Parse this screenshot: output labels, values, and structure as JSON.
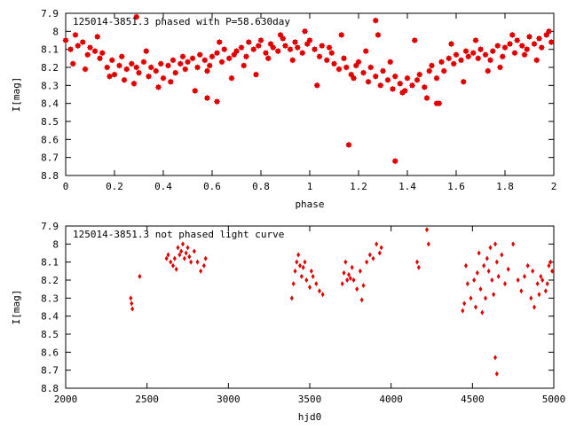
{
  "chart_data": [
    {
      "type": "scatter",
      "title": "125014-3851.3 phased with P=58.630day",
      "xlabel": "phase",
      "ylabel": "I[mag]",
      "xlim": [
        0,
        2
      ],
      "ylim": [
        7.9,
        8.8
      ],
      "y_inverted": true,
      "marker": "star",
      "color": "#e00000",
      "xticks": [
        "0",
        "0.2",
        "0.4",
        "0.6",
        "0.8",
        "1",
        "1.2",
        "1.4",
        "1.6",
        "1.8",
        "2"
      ],
      "yticks": [
        "7.9",
        "8",
        "8.1",
        "8.2",
        "8.3",
        "8.4",
        "8.5",
        "8.6",
        "8.7",
        "8.8"
      ],
      "xtick_values": [
        0,
        0.2,
        0.4,
        0.6,
        0.8,
        1,
        1.2,
        1.4,
        1.6,
        1.8,
        2
      ],
      "ytick_values": [
        7.9,
        8.0,
        8.1,
        8.2,
        8.3,
        8.4,
        8.5,
        8.6,
        8.7,
        8.8
      ],
      "x": [
        0.0,
        0.02,
        0.04,
        0.05,
        0.07,
        0.09,
        0.1,
        0.12,
        0.14,
        0.15,
        0.17,
        0.19,
        0.2,
        0.22,
        0.24,
        0.25,
        0.27,
        0.29,
        0.3,
        0.32,
        0.34,
        0.35,
        0.37,
        0.39,
        0.4,
        0.42,
        0.44,
        0.45,
        0.47,
        0.49,
        0.5,
        0.52,
        0.54,
        0.55,
        0.57,
        0.59,
        0.6,
        0.62,
        0.64,
        0.65,
        0.67,
        0.69,
        0.7,
        0.72,
        0.74,
        0.75,
        0.77,
        0.79,
        0.8,
        0.82,
        0.84,
        0.85,
        0.87,
        0.89,
        0.9,
        0.92,
        0.94,
        0.95,
        0.97,
        0.99,
        1.0,
        1.02,
        1.04,
        1.05,
        1.07,
        1.09,
        1.1,
        1.12,
        1.14,
        1.15,
        1.17,
        1.19,
        1.2,
        1.22,
        1.24,
        1.25,
        1.27,
        1.29,
        1.3,
        1.32,
        1.34,
        1.35,
        1.37,
        1.39,
        1.4,
        1.42,
        1.44,
        1.45,
        1.47,
        1.49,
        1.5,
        1.52,
        1.54,
        1.55,
        1.57,
        1.59,
        1.6,
        1.62,
        1.64,
        1.65,
        1.67,
        1.69,
        1.7,
        1.72,
        1.74,
        1.75,
        1.77,
        1.79,
        1.8,
        1.82,
        1.84,
        1.85,
        1.87,
        1.89,
        1.9,
        1.92,
        1.94,
        1.95,
        1.97,
        1.99,
        0.03,
        0.08,
        0.13,
        0.18,
        0.23,
        0.28,
        0.33,
        0.38,
        0.43,
        0.48,
        0.53,
        0.58,
        0.63,
        0.68,
        0.73,
        0.78,
        0.83,
        0.88,
        0.93,
        0.98,
        1.03,
        1.08,
        1.13,
        1.18,
        1.23,
        1.28,
        1.33,
        1.38,
        1.43,
        1.48,
        1.53,
        1.58,
        1.63,
        1.68,
        1.73,
        1.78,
        1.83,
        1.88,
        1.93,
        1.98,
        0.29,
        1.16,
        1.35,
        1.27,
        0.58,
        0.62,
        1.52
      ],
      "y": [
        8.05,
        8.1,
        8.02,
        8.08,
        8.06,
        8.13,
        8.09,
        8.11,
        8.15,
        8.12,
        8.2,
        8.16,
        8.24,
        8.19,
        8.27,
        8.21,
        8.18,
        8.2,
        8.23,
        8.17,
        8.25,
        8.2,
        8.22,
        8.18,
        8.26,
        8.19,
        8.16,
        8.23,
        8.18,
        8.21,
        8.17,
        8.15,
        8.2,
        8.13,
        8.16,
        8.19,
        8.14,
        8.12,
        8.17,
        8.1,
        8.15,
        8.13,
        8.11,
        8.09,
        8.14,
        8.06,
        8.1,
        8.08,
        8.05,
        8.12,
        8.07,
        8.09,
        8.11,
        8.04,
        8.08,
        8.1,
        8.06,
        8.09,
        8.12,
        8.07,
        8.05,
        8.1,
        8.14,
        8.08,
        8.16,
        8.12,
        8.18,
        8.21,
        8.15,
        8.2,
        8.24,
        8.19,
        8.17,
        8.23,
        8.28,
        8.2,
        8.25,
        8.3,
        8.22,
        8.27,
        8.32,
        8.25,
        8.29,
        8.33,
        8.26,
        8.3,
        8.27,
        8.24,
        8.31,
        8.22,
        8.19,
        8.26,
        8.17,
        8.22,
        8.15,
        8.18,
        8.13,
        8.16,
        8.11,
        8.14,
        8.12,
        8.15,
        8.1,
        8.13,
        8.16,
        8.11,
        8.08,
        8.14,
        8.09,
        8.07,
        8.12,
        8.05,
        8.08,
        8.1,
        8.03,
        8.07,
        8.04,
        8.09,
        8.02,
        8.06,
        8.18,
        8.21,
        8.03,
        8.25,
        8.14,
        8.29,
        8.11,
        8.31,
        8.28,
        8.14,
        8.33,
        8.22,
        8.06,
        8.26,
        8.19,
        8.24,
        8.15,
        8.02,
        8.16,
        8.0,
        8.3,
        8.09,
        8.02,
        8.26,
        8.11,
        8.02,
        8.17,
        8.34,
        8.05,
        8.37,
        8.4,
        8.07,
        8.28,
        8.05,
        8.22,
        8.2,
        8.02,
        8.13,
        8.16,
        8.0,
        7.92,
        8.63,
        8.72,
        7.94,
        8.37,
        8.39,
        8.4
      ]
    },
    {
      "type": "scatter",
      "title": "125014-3851.3 not phased light curve",
      "xlabel": "hjd0",
      "ylabel": "I[mag]",
      "xlim": [
        2000,
        5000
      ],
      "ylim": [
        7.9,
        8.8
      ],
      "y_inverted": true,
      "marker": "diamond",
      "color": "#e00000",
      "xticks": [
        "2000",
        "2500",
        "3000",
        "3500",
        "4000",
        "4500",
        "5000"
      ],
      "yticks": [
        "7.9",
        "8",
        "8.1",
        "8.2",
        "8.3",
        "8.4",
        "8.5",
        "8.6",
        "8.7",
        "8.8"
      ],
      "xtick_values": [
        2000,
        2500,
        3000,
        3500,
        4000,
        4500,
        5000
      ],
      "ytick_values": [
        7.9,
        8.0,
        8.1,
        8.2,
        8.3,
        8.4,
        8.5,
        8.6,
        8.7,
        8.8
      ],
      "x": [
        2400,
        2405,
        2410,
        2455,
        2620,
        2630,
        2645,
        2660,
        2670,
        2680,
        2690,
        2700,
        2710,
        2720,
        2730,
        2740,
        2750,
        2760,
        2770,
        2790,
        2810,
        2830,
        2850,
        2860,
        3390,
        3400,
        3410,
        3420,
        3430,
        3440,
        3450,
        3460,
        3470,
        3480,
        3500,
        3510,
        3520,
        3540,
        3560,
        3580,
        3700,
        3710,
        3720,
        3730,
        3740,
        3750,
        3760,
        3770,
        3790,
        3810,
        3820,
        3830,
        3850,
        3870,
        3890,
        3910,
        3930,
        3940,
        4160,
        4170,
        4220,
        4230,
        4440,
        4450,
        4460,
        4470,
        4490,
        4510,
        4520,
        4530,
        4540,
        4550,
        4560,
        4570,
        4580,
        4590,
        4600,
        4610,
        4620,
        4630,
        4640,
        4650,
        4660,
        4680,
        4700,
        4720,
        4750,
        4780,
        4800,
        4820,
        4840,
        4860,
        4870,
        4880,
        4900,
        4910,
        4920,
        4930,
        4950,
        4960,
        4970,
        4980,
        4990,
        4640,
        4650
      ],
      "y": [
        8.3,
        8.33,
        8.36,
        8.18,
        8.08,
        8.06,
        8.1,
        8.12,
        8.08,
        8.14,
        8.02,
        8.06,
        8.04,
        8.0,
        8.08,
        8.05,
        8.02,
        8.07,
        8.1,
        8.04,
        8.1,
        8.15,
        8.12,
        8.08,
        8.3,
        8.22,
        8.15,
        8.1,
        8.06,
        8.12,
        8.18,
        8.13,
        8.1,
        8.2,
        8.24,
        8.15,
        8.18,
        8.22,
        8.26,
        8.28,
        8.22,
        8.16,
        8.1,
        8.2,
        8.17,
        8.19,
        8.13,
        8.2,
        8.25,
        8.15,
        8.31,
        8.23,
        8.1,
        8.06,
        8.08,
        8.0,
        8.05,
        8.02,
        8.1,
        8.13,
        7.92,
        8.0,
        8.37,
        8.33,
        8.12,
        8.22,
        8.3,
        8.2,
        8.35,
        8.16,
        8.05,
        8.25,
        8.38,
        8.12,
        8.3,
        8.08,
        8.15,
        8.02,
        8.2,
        8.28,
        8.0,
        8.1,
        8.18,
        8.06,
        8.22,
        8.14,
        8.0,
        8.2,
        8.26,
        8.18,
        8.12,
        8.3,
        8.15,
        8.35,
        8.22,
        8.28,
        8.18,
        8.2,
        8.26,
        8.22,
        8.12,
        8.1,
        8.15,
        8.63,
        8.72
      ]
    }
  ]
}
